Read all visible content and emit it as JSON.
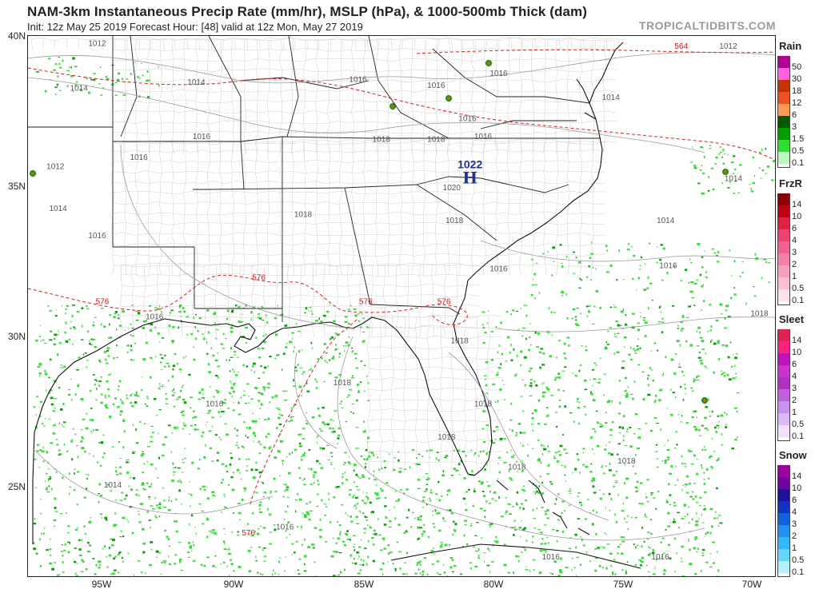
{
  "header": {
    "title": "NAM-3km Instantaneous Precip Rate (mm/hr), MSLP (hPa), & 1000-500mb Thick (dam)",
    "subtitle": "Init: 12z May 25 2019   Forecast Hour: [48]   valid at 12z Mon, May 27 2019",
    "brand": "TROPICALTIDBITS.COM"
  },
  "axes": {
    "lat_labels": [
      "40N",
      "35N",
      "30N",
      "25N"
    ],
    "lon_labels": [
      "95W",
      "90W",
      "85W",
      "80W",
      "75W",
      "70W"
    ]
  },
  "map": {
    "high_center": {
      "value": "1022",
      "letter": "H",
      "lon": -80.9,
      "lat": 35.2
    },
    "isobars": [
      {
        "label": "1012",
        "lon": -95.2,
        "lat": 39.7
      },
      {
        "label": "1014",
        "lon": -91.4,
        "lat": 38.4
      },
      {
        "label": "1016",
        "lon": -85.2,
        "lat": 38.5
      },
      {
        "label": "1016",
        "lon": -82.2,
        "lat": 38.3
      },
      {
        "label": "1016",
        "lon": -79.8,
        "lat": 38.7
      },
      {
        "label": "1016",
        "lon": -81.0,
        "lat": 37.2
      },
      {
        "label": "1016",
        "lon": -91.2,
        "lat": 36.6
      },
      {
        "label": "1016",
        "lon": -80.4,
        "lat": 36.6
      },
      {
        "label": "1014",
        "lon": -95.9,
        "lat": 38.2
      },
      {
        "label": "1014",
        "lon": -75.5,
        "lat": 37.9
      },
      {
        "label": "1012",
        "lon": -96.8,
        "lat": 35.6
      },
      {
        "label": "1016",
        "lon": -93.6,
        "lat": 35.9
      },
      {
        "label": "1014",
        "lon": -96.7,
        "lat": 34.2
      },
      {
        "label": "1016",
        "lon": -95.2,
        "lat": 33.3
      },
      {
        "label": "1018",
        "lon": -84.3,
        "lat": 36.5
      },
      {
        "label": "1018",
        "lon": -82.2,
        "lat": 36.5
      },
      {
        "label": "1020",
        "lon": -81.6,
        "lat": 34.9
      },
      {
        "label": "1018",
        "lon": -87.3,
        "lat": 34.0
      },
      {
        "label": "1018",
        "lon": -81.5,
        "lat": 33.8
      },
      {
        "label": "1016",
        "lon": -79.8,
        "lat": 32.2
      },
      {
        "label": "1016",
        "lon": -93.0,
        "lat": 30.6
      },
      {
        "label": "1014",
        "lon": -73.4,
        "lat": 33.8
      },
      {
        "label": "1016",
        "lon": -73.3,
        "lat": 32.3
      },
      {
        "label": "1014",
        "lon": -70.8,
        "lat": 35.2
      },
      {
        "label": "1018",
        "lon": -81.3,
        "lat": 29.8
      },
      {
        "label": "1018",
        "lon": -69.8,
        "lat": 30.7
      },
      {
        "label": "1018",
        "lon": -85.8,
        "lat": 28.4
      },
      {
        "label": "1018",
        "lon": -80.4,
        "lat": 27.7
      },
      {
        "label": "1016",
        "lon": -90.7,
        "lat": 27.7
      },
      {
        "label": "1018",
        "lon": -81.8,
        "lat": 26.6
      },
      {
        "label": "1018",
        "lon": -79.1,
        "lat": 25.6
      },
      {
        "label": "1018",
        "lon": -74.9,
        "lat": 25.8
      },
      {
        "label": "1014",
        "lon": -94.6,
        "lat": 25.0
      },
      {
        "label": "1016",
        "lon": -88.0,
        "lat": 23.6
      },
      {
        "label": "1016",
        "lon": -77.8,
        "lat": 22.6
      },
      {
        "label": "1016",
        "lon": -73.6,
        "lat": 22.6
      },
      {
        "label": "1012",
        "lon": -71.0,
        "lat": 39.6
      }
    ],
    "thickness": [
      {
        "label": "576",
        "lon": -89.0,
        "lat": 31.9
      },
      {
        "label": "576",
        "lon": -84.9,
        "lat": 31.1
      },
      {
        "label": "576",
        "lon": -81.9,
        "lat": 31.1
      },
      {
        "label": "576",
        "lon": -95.0,
        "lat": 31.1
      },
      {
        "label": "576",
        "lon": -89.4,
        "lat": 23.4
      },
      {
        "label": "564",
        "lon": -72.8,
        "lat": 39.6
      }
    ]
  },
  "legend": {
    "rain": {
      "title": "Rain",
      "levels": [
        "50",
        "30",
        "18",
        "12",
        "6",
        "3",
        "1.5",
        "0.5",
        "0.1"
      ],
      "colors": [
        "#b40090",
        "#ff60e0",
        "#c83200",
        "#f05020",
        "#ff9850",
        "#005a00",
        "#00a000",
        "#2ee02e",
        "#b8f8b8"
      ]
    },
    "frzr": {
      "title": "FrzR",
      "levels": [
        "14",
        "10",
        "6",
        "4",
        "3",
        "2",
        "1",
        "0.5",
        "0.1"
      ],
      "colors": [
        "#900000",
        "#c00010",
        "#e02040",
        "#f04070",
        "#f06090",
        "#f480a8",
        "#f8a0c0",
        "#fbc0d4",
        "#fde0ea"
      ]
    },
    "sleet": {
      "title": "Sleet",
      "levels": [
        "14",
        "10",
        "6",
        "4",
        "3",
        "2",
        "1",
        "0.5",
        "0.1"
      ],
      "colors": [
        "#e02050",
        "#ff2080",
        "#c010c0",
        "#d030d0",
        "#b030c0",
        "#c060e0",
        "#c890f0",
        "#dcb8f8",
        "#f0e0fc"
      ]
    },
    "snow": {
      "title": "Snow",
      "levels": [
        "14",
        "10",
        "6",
        "4",
        "3",
        "2",
        "1",
        "0.5",
        "0.1"
      ],
      "colors": [
        "#a000a0",
        "#7000a0",
        "#2010a0",
        "#1030c8",
        "#1060e0",
        "#2090f0",
        "#30b8f8",
        "#60d8ff",
        "#b0f0ff"
      ]
    }
  }
}
